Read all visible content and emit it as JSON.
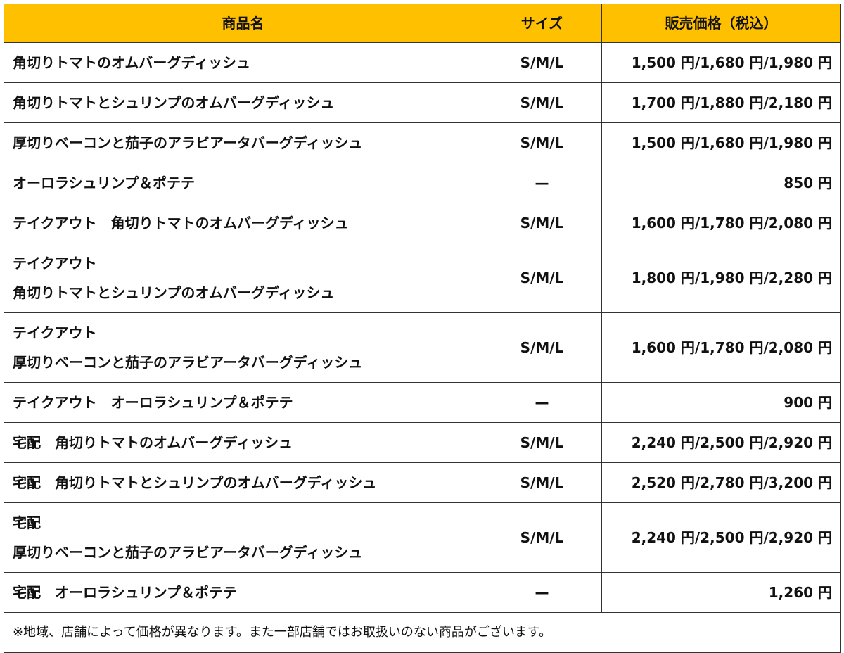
{
  "table": {
    "header": [
      "商品名",
      "サイズ",
      "販売価格（税込）"
    ],
    "rows": [
      [
        "角切りトマトのオムバーグディッシュ",
        "S/M/L",
        "1,500 円/1,680 円/1,980 円"
      ],
      [
        "角切りトマトとシュリンプのオムバーグディッシュ",
        "S/M/L",
        "1,700 円/1,880 円/2,180 円"
      ],
      [
        "厚切りベーコンと茄子のアラビアータバーグディッシュ",
        "S/M/L",
        "1,500 円/1,680 円/1,980 円"
      ],
      [
        "オーロラシュリンプ＆ポテテ",
        "—",
        "850 円"
      ],
      [
        "テイクアウト　角切りトマトのオムバーグディッシュ",
        "S/M/L",
        "1,600 円/1,780 円/2,080 円"
      ],
      [
        "テイクアウト\n角切りトマトとシュリンプのオムバーグディッシュ",
        "S/M/L",
        "1,800 円/1,980 円/2,280 円"
      ],
      [
        "テイクアウト\n厚切りベーコンと茄子のアラビアータバーグディッシュ",
        "S/M/L",
        "1,600 円/1,780 円/2,080 円"
      ],
      [
        "テイクアウト　オーロラシュリンプ＆ポテテ",
        "—",
        "900 円"
      ],
      [
        "宅配　角切りトマトのオムバーグディッシュ",
        "S/M/L",
        "2,240 円/2,500 円/2,920 円"
      ],
      [
        "宅配　角切りトマトとシュリンプのオムバーグディッシュ",
        "S/M/L",
        "2,520 円/2,780 円/3,200 円"
      ],
      [
        "宅配\n厚切りベーコンと茄子のアラビアータバーグディッシュ",
        "S/M/L",
        "2,240 円/2,500 円/2,920 円"
      ],
      [
        "宅配　オーロラシュリンプ＆ポテテ",
        "—",
        "1,260 円"
      ]
    ],
    "note": "※地域、店舗によって価格が異なります。また一部店舗ではお取扱いのない商品がございます。"
  }
}
